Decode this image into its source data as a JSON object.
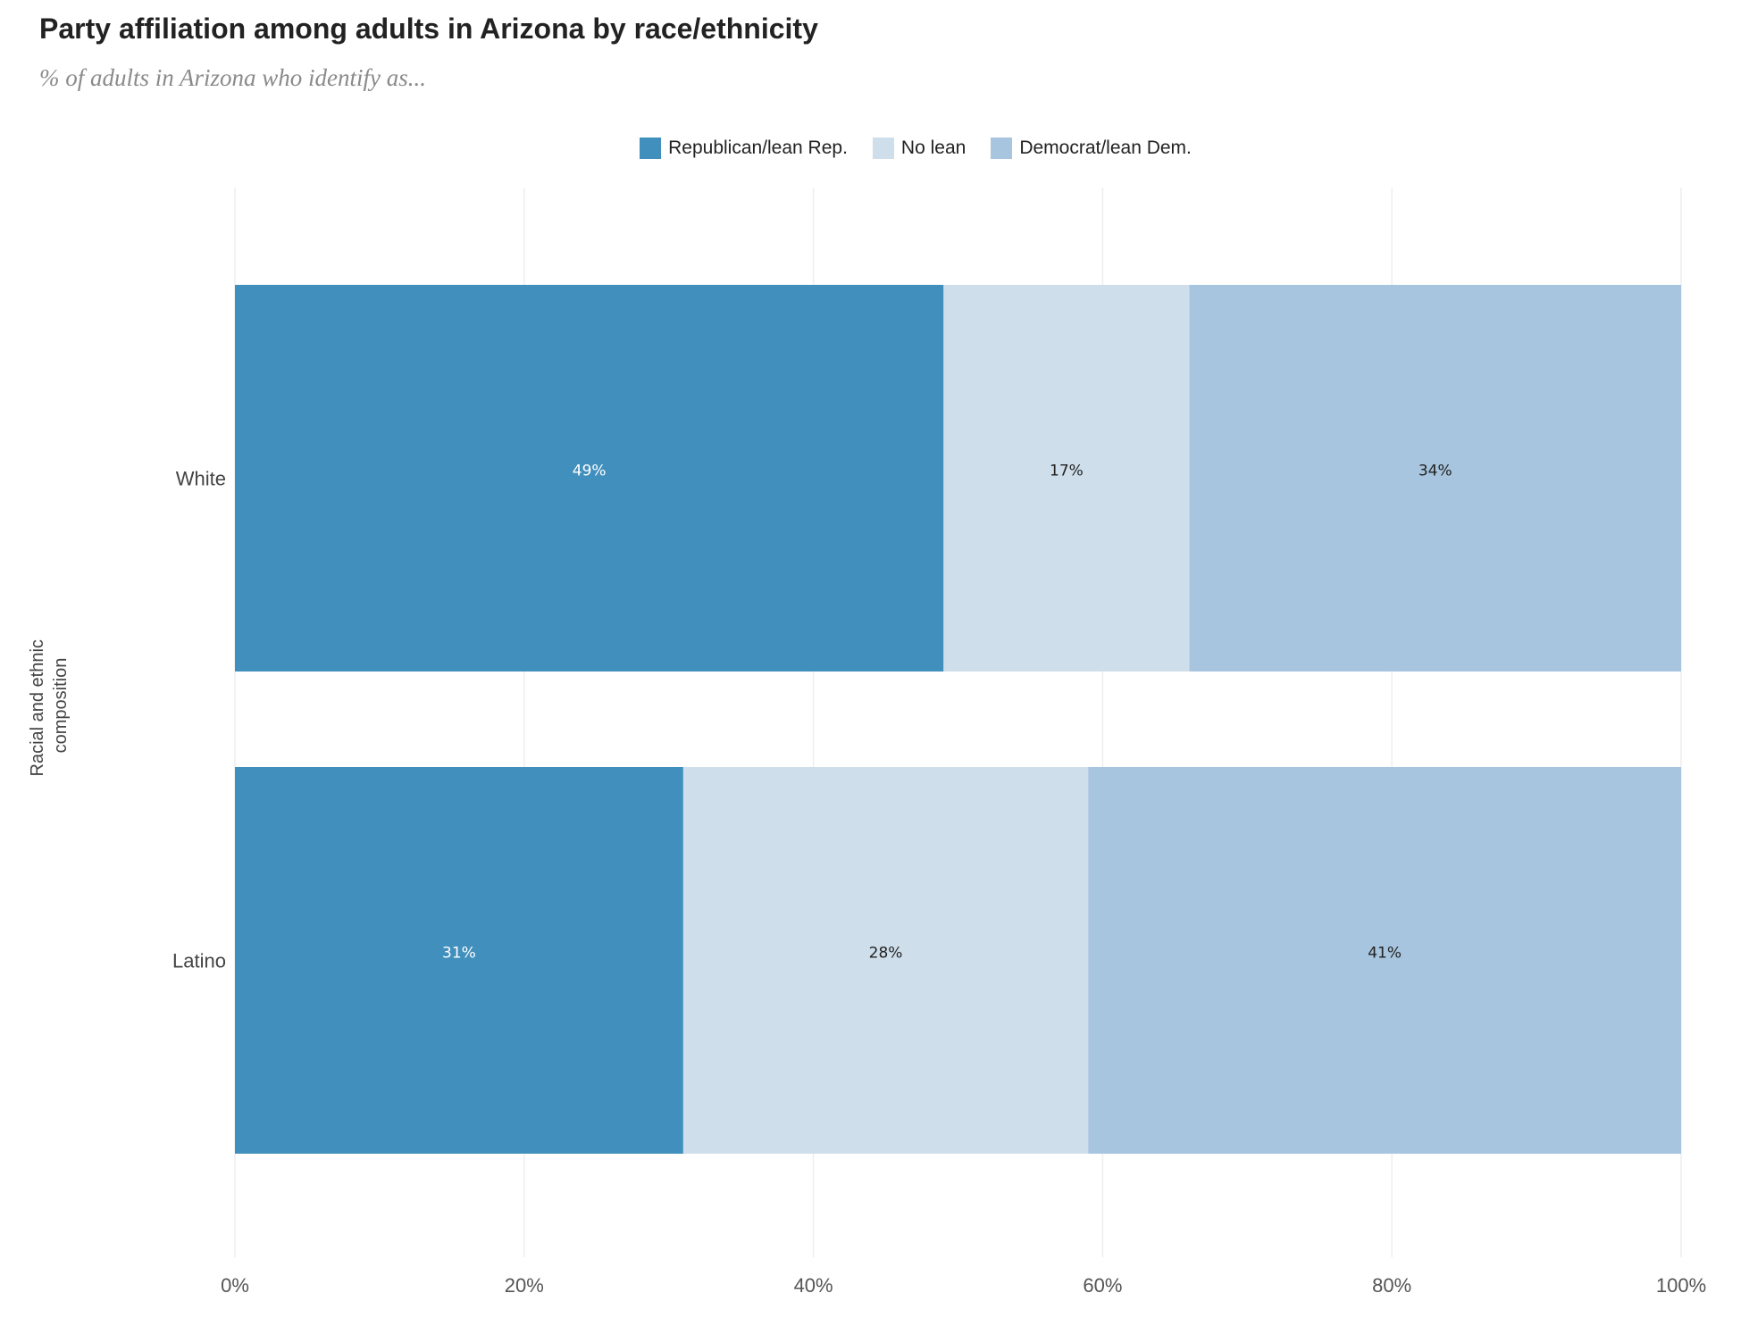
{
  "chart_data": {
    "type": "bar",
    "orientation": "horizontal",
    "stacked": true,
    "title": "Party affiliation among adults in Arizona by race/ethnicity",
    "subtitle": "% of adults in Arizona who identify as...",
    "xlabel": "",
    "ylabel": "Racial and ethnic composition",
    "xlim": [
      0,
      100
    ],
    "x_ticks": [
      0,
      20,
      40,
      60,
      80,
      100
    ],
    "x_tick_suffix": "%",
    "grid": true,
    "legend_position": "top-center",
    "categories": [
      "White",
      "Latino"
    ],
    "series": [
      {
        "name": "Republican/lean Rep.",
        "color": "#418fbd",
        "label_color": "#ffffff",
        "values": [
          49,
          31
        ]
      },
      {
        "name": "No lean",
        "color": "#cfdeeb",
        "label_color": "#222222",
        "values": [
          17,
          28
        ]
      },
      {
        "name": "Democrat/lean Dem.",
        "color": "#a7c5de",
        "label_color": "#222222",
        "values": [
          34,
          41
        ]
      }
    ],
    "data_labels": [
      [
        "49%",
        "17%",
        "34%"
      ],
      [
        "31%",
        "28%",
        "41%"
      ]
    ]
  }
}
